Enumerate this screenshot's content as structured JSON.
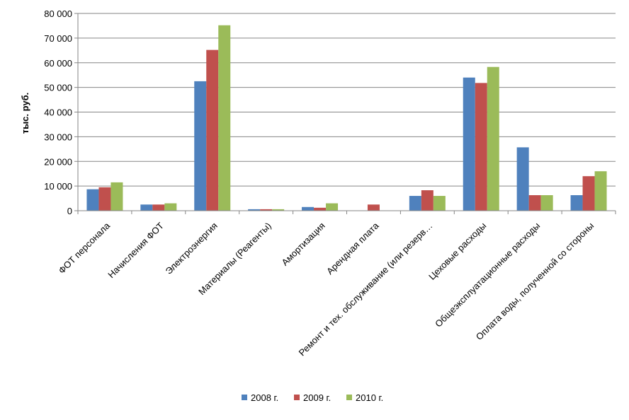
{
  "chart_data": {
    "type": "bar",
    "title": "",
    "xlabel": "",
    "ylabel": "тыс. руб.",
    "ylim": [
      0,
      80000
    ],
    "y_ticks": [
      0,
      10000,
      20000,
      30000,
      40000,
      50000,
      60000,
      70000,
      80000
    ],
    "y_tick_labels": [
      "0",
      "10 000",
      "20 000",
      "30 000",
      "40 000",
      "50 000",
      "60 000",
      "70 000",
      "80 000"
    ],
    "grid": true,
    "legend_position": "bottom",
    "categories": [
      "ФОТ персонала",
      "Начисления ФОТ",
      "Электроэнергия",
      "Материалы (Реагенты)",
      "Амортизация",
      "Арендная плата",
      "Ремонт и тех. обслуживание (или резерв…",
      "Цеховые расходы",
      "Общеэксплуатационные расходы",
      "Оплата воды, полученной со стороны"
    ],
    "series": [
      {
        "name": "2008 г.",
        "color": "#4f81bd",
        "values": [
          8700,
          2500,
          52500,
          600,
          1500,
          0,
          6000,
          54000,
          25700,
          6300
        ]
      },
      {
        "name": "2009 г.",
        "color": "#c0504d",
        "values": [
          9500,
          2500,
          65200,
          600,
          1200,
          2500,
          8300,
          51800,
          6300,
          14000
        ]
      },
      {
        "name": "2010 г.",
        "color": "#9bbb59",
        "values": [
          11500,
          3000,
          75200,
          600,
          3000,
          0,
          6000,
          58300,
          6300,
          16000
        ]
      }
    ]
  }
}
